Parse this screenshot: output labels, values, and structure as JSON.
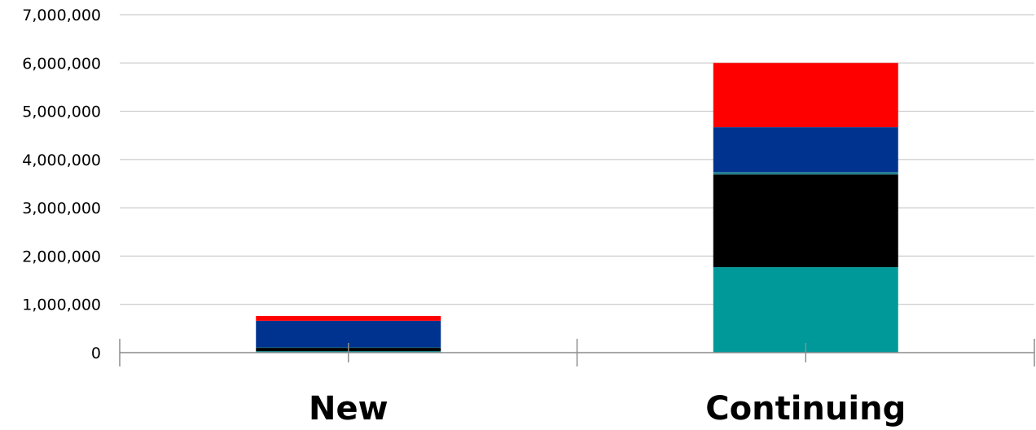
{
  "chart_data": {
    "type": "bar",
    "stacked": true,
    "title": "",
    "xlabel": "",
    "ylabel": "",
    "ylim": [
      0,
      7000000
    ],
    "yticks": [
      0,
      1000000,
      2000000,
      3000000,
      4000000,
      5000000,
      6000000,
      7000000
    ],
    "ytick_labels": [
      "0",
      "1,000,000",
      "2,000,000",
      "3,000,000",
      "4,000,000",
      "5,000,000",
      "6,000,000",
      "7,000,000"
    ],
    "grid": true,
    "legend": "none",
    "categories": [
      "New",
      "Continuing"
    ],
    "series": [
      {
        "color": "#00999a",
        "values": [
          30000,
          1770000
        ]
      },
      {
        "color": "#000000",
        "values": [
          70000,
          1920000
        ]
      },
      {
        "color": "#1f7f8f",
        "values": [
          10000,
          50000
        ]
      },
      {
        "color": "#00338f",
        "values": [
          550000,
          930000
        ]
      },
      {
        "color": "#ff0000",
        "values": [
          100000,
          1330000
        ]
      }
    ]
  }
}
